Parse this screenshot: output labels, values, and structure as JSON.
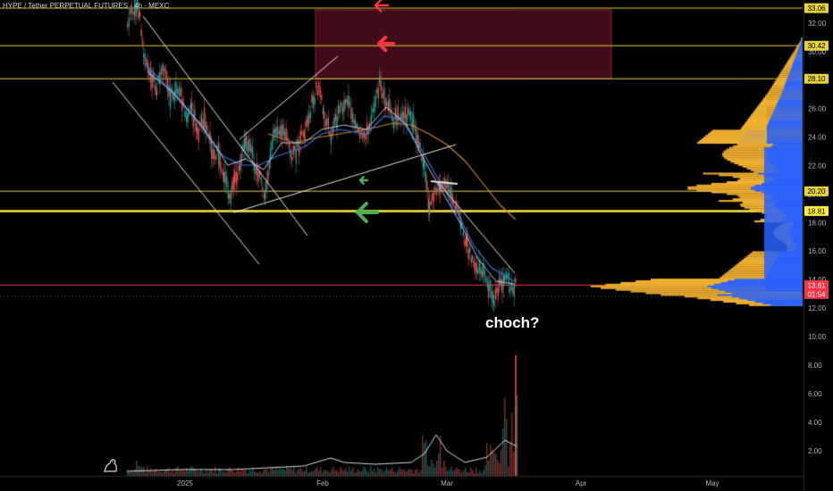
{
  "header": {
    "title": "HYPE / Tether PERPETUAL FUTURES · 4h · MEXC"
  },
  "annotation": {
    "text": "choch?"
  },
  "colors": {
    "background": "#000000",
    "resistance_line": "#e6d23a",
    "key_support": "#ffeb3b",
    "current_price_line": "#f23645",
    "supply_zone": "#6b1a2e",
    "arrow_red": "#f23645",
    "arrow_green": "#4caf50",
    "volume_profile_up": "#2962ff",
    "volume_profile_down": "#f0b030",
    "candle_up": "#26a69a",
    "candle_down": "#ef5350"
  },
  "chart_data": {
    "type": "candlestick",
    "timeframe": "4h",
    "price_axis_ticks": [
      "32.00",
      "30.00",
      "28.00",
      "26.00",
      "24.00",
      "22.00",
      "20.00",
      "18.00",
      "16.00",
      "14.00",
      "12.00",
      "10.00",
      "8.00",
      "6.00",
      "4.00",
      "2.00"
    ],
    "price_badges": [
      {
        "label": "33.06",
        "kind": "level"
      },
      {
        "label": "30.42",
        "kind": "level"
      },
      {
        "label": "28.10",
        "kind": "level"
      },
      {
        "label": "20.20",
        "kind": "level"
      },
      {
        "label": "18.81",
        "kind": "level"
      },
      {
        "label": "13.61",
        "kind": "price"
      },
      {
        "label": "01:54",
        "kind": "countdown"
      }
    ],
    "time_axis_labels": [
      "2025",
      "Feb",
      "Mar",
      "Apr",
      "May"
    ],
    "horizontal_levels": [
      33.06,
      30.42,
      28.1,
      20.2,
      18.81,
      13.61
    ],
    "supply_zone": {
      "from_price": 28.1,
      "to_price": 33.06
    },
    "trend": [
      {
        "segment": "descending channel",
        "from": 33.0,
        "to": 18.8
      },
      {
        "segment": "range",
        "from": 18.8,
        "to": 28.0
      },
      {
        "segment": "breakdown",
        "from": 25.5,
        "to": 12.4
      }
    ],
    "current_price": 13.61
  }
}
